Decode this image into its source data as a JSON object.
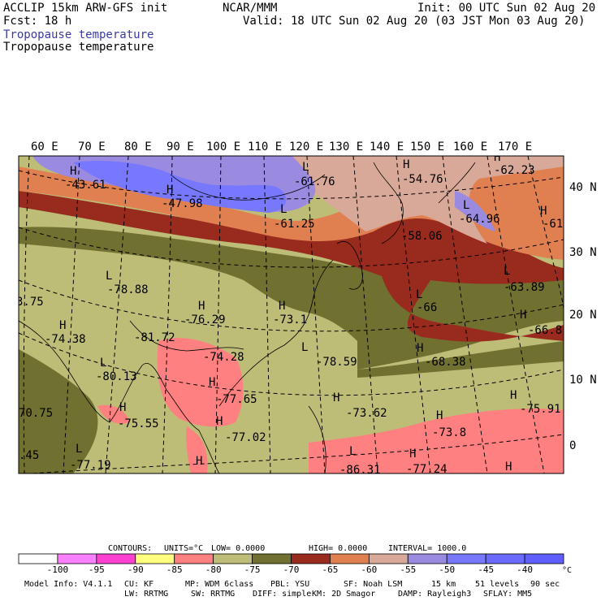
{
  "header": {
    "line1_left": "ACCLIP 15km ARW-GFS init",
    "line1_center": "NCAR/MMM",
    "line1_right": "Init: 00 UTC Sun 02 Aug 20",
    "line2_left": "Fcst:   18 h",
    "line2_right": "Valid: 18 UTC Sun 02 Aug 20 (03 JST Mon 03 Aug 20)",
    "field_label_blue": "Tropopause temperature",
    "field_label_black": "Tropopause temperature"
  },
  "map": {
    "lon_labels": [
      "60 E",
      "70 E",
      "80 E",
      "90 E",
      "100 E",
      "110 E",
      "120 E",
      "130 E",
      "140 E",
      "150 E",
      "160 E",
      "170 E"
    ],
    "lat_labels": [
      "40 N",
      "30 N",
      "20 N",
      "10 N",
      "0"
    ],
    "field_labels": [
      {
        "text": "H",
        "kind": "symbol"
      },
      {
        "text": "-43.61",
        "kind": "value"
      },
      {
        "text": "H",
        "kind": "symbol"
      },
      {
        "text": "-47.98",
        "kind": "value"
      },
      {
        "text": "L",
        "kind": "symbol"
      },
      {
        "text": "-61.76",
        "kind": "value"
      },
      {
        "text": "L",
        "kind": "symbol"
      },
      {
        "text": "-61.25",
        "kind": "value"
      },
      {
        "text": "H",
        "kind": "symbol"
      },
      {
        "text": "-54.76",
        "kind": "value"
      },
      {
        "text": "H",
        "kind": "symbol"
      },
      {
        "text": "-62.23",
        "kind": "value"
      },
      {
        "text": "L",
        "kind": "symbol"
      },
      {
        "text": "-64.96",
        "kind": "value"
      },
      {
        "text": "H",
        "kind": "symbol"
      },
      {
        "text": "-61",
        "kind": "value"
      },
      {
        "text": "-58.06",
        "kind": "value"
      },
      {
        "text": "L",
        "kind": "symbol"
      },
      {
        "text": "-78.88",
        "kind": "value"
      },
      {
        "text": "3.75",
        "kind": "value"
      },
      {
        "text": "H",
        "kind": "symbol"
      },
      {
        "text": "-76.29",
        "kind": "value"
      },
      {
        "text": "H",
        "kind": "symbol"
      },
      {
        "text": "-73.1",
        "kind": "value"
      },
      {
        "text": "L",
        "kind": "symbol"
      },
      {
        "text": "-66",
        "kind": "value"
      },
      {
        "text": "L",
        "kind": "symbol"
      },
      {
        "text": "-63.89",
        "kind": "value"
      },
      {
        "text": "H",
        "kind": "symbol"
      },
      {
        "text": "-66.8",
        "kind": "value"
      },
      {
        "text": "H",
        "kind": "symbol"
      },
      {
        "text": "-74.38",
        "kind": "value"
      },
      {
        "text": "-81.72",
        "kind": "value"
      },
      {
        "text": "-74.28",
        "kind": "value"
      },
      {
        "text": "L",
        "kind": "symbol"
      },
      {
        "text": "-78.59",
        "kind": "value"
      },
      {
        "text": "H",
        "kind": "symbol"
      },
      {
        "text": "-68.38",
        "kind": "value"
      },
      {
        "text": "L",
        "kind": "symbol"
      },
      {
        "text": "-80.13",
        "kind": "value"
      },
      {
        "text": "H",
        "kind": "symbol"
      },
      {
        "text": "-77.65",
        "kind": "value"
      },
      {
        "text": "H",
        "kind": "symbol"
      },
      {
        "text": "-73.62",
        "kind": "value"
      },
      {
        "text": "H",
        "kind": "symbol"
      },
      {
        "text": "-75.91",
        "kind": "value"
      },
      {
        "text": "70.75",
        "kind": "value"
      },
      {
        "text": "H",
        "kind": "symbol"
      },
      {
        "text": "-75.55",
        "kind": "value"
      },
      {
        "text": "H",
        "kind": "symbol"
      },
      {
        "text": "-77.02",
        "kind": "value"
      },
      {
        "text": "H",
        "kind": "symbol"
      },
      {
        "text": "-73.8",
        "kind": "value"
      },
      {
        "text": ".45",
        "kind": "value"
      },
      {
        "text": "L",
        "kind": "symbol"
      },
      {
        "text": "-77.19",
        "kind": "value"
      },
      {
        "text": "H",
        "kind": "symbol"
      },
      {
        "text": "L",
        "kind": "symbol"
      },
      {
        "text": "-86.31",
        "kind": "value"
      },
      {
        "text": "H",
        "kind": "symbol"
      },
      {
        "text": "-77.24",
        "kind": "value"
      },
      {
        "text": "H",
        "kind": "symbol"
      }
    ]
  },
  "contour_info": {
    "contours_label": "CONTOURS:",
    "units": "UNITS=°C",
    "low": "LOW=  0.0000",
    "high": "HIGH=  0.0000",
    "interval": "INTERVAL=   1000.0"
  },
  "colorbar": {
    "colors": [
      "#ffffff",
      "#ff80ff",
      "#ff40d0",
      "#ffff80",
      "#ff8080",
      "#bdbd78",
      "#707030",
      "#982a1e",
      "#e08050",
      "#d8a898",
      "#9a8ae0",
      "#7878ff",
      "#6a6aff",
      "#5f5fff"
    ],
    "tick_labels": [
      "-100",
      "-95",
      "-90",
      "-85",
      "-80",
      "-75",
      "-70",
      "-65",
      "-60",
      "-55",
      "-50",
      "-45",
      "-40"
    ],
    "unit_label": "°C"
  },
  "footer": {
    "model_info": "Model Info: V4.1.1",
    "cu": "CU: KF",
    "mp": "MP: WDM 6class",
    "pbl": "PBL: YSU",
    "sf": "SF: Noah LSM",
    "res": "15 km",
    "levels": "51 levels",
    "dt": "90 sec",
    "lw": "LW: RRTMG",
    "sw": "SW: RRTMG",
    "diff": "DIFF: simple",
    "km": "KM: 2D Smagor",
    "damp": "DAMP: Rayleigh3",
    "sflay": "SFLAY: MM5"
  }
}
